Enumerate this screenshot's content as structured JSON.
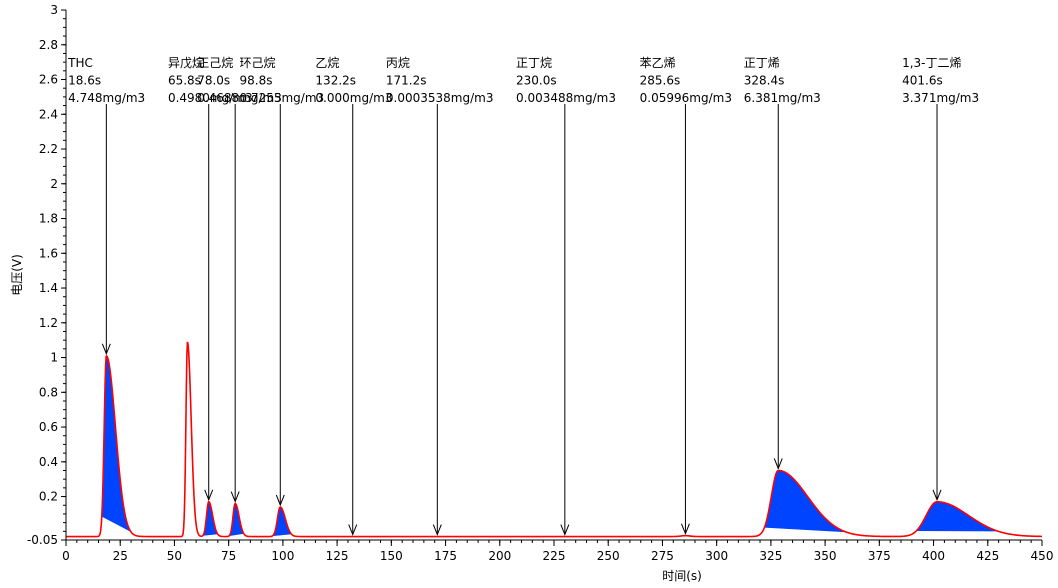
{
  "chart_data": {
    "type": "line",
    "title": "",
    "xlabel": "时间(s)",
    "ylabel": "电压(V)",
    "xlim": [
      0,
      450
    ],
    "ylim": [
      -0.05,
      3
    ],
    "baseline": -0.03,
    "x_ticks": [
      0,
      25,
      50,
      75,
      100,
      125,
      150,
      175,
      200,
      225,
      250,
      275,
      300,
      325,
      350,
      375,
      400,
      425,
      450
    ],
    "y_ticks": [
      "-0.05",
      "0.2",
      "0.4",
      "0.6",
      "0.8",
      "1",
      "1.2",
      "1.4",
      "1.6",
      "1.8",
      "2",
      "2.2",
      "2.4",
      "2.6",
      "2.8",
      "3"
    ],
    "line_color": "#ff0000",
    "fill_color": "#0044ff",
    "grid": false,
    "peaks": [
      {
        "name": "THC",
        "time": "18.6s",
        "conc": "4.748mg/m3",
        "t": 18.6,
        "height": 1.04,
        "sigma_l": 1.0,
        "sigma_r": 4.2,
        "start": 16.5,
        "end": 30,
        "label_x": 1.0
      },
      {
        "name": "异戊烷",
        "time": "65.8s",
        "conc": "0.4980mg/m3",
        "t": 65.8,
        "height": 0.2,
        "sigma_l": 1.0,
        "sigma_r": 1.8,
        "start": 63,
        "end": 70,
        "label_x": 47.0
      },
      {
        "name": "正己烷",
        "time": "78.0s",
        "conc": "0.4688mg/m3",
        "t": 78.0,
        "height": 0.19,
        "sigma_l": 1.0,
        "sigma_r": 1.8,
        "start": 75,
        "end": 82,
        "label_x": 60.5
      },
      {
        "name": "环己烷",
        "time": "98.8s",
        "conc": "0.7255mg/m3",
        "t": 98.8,
        "height": 0.17,
        "sigma_l": 1.3,
        "sigma_r": 2.3,
        "start": 95,
        "end": 104,
        "label_x": 80.0
      },
      {
        "name": "乙烷",
        "time": "132.2s",
        "conc": "0.000mg/m3",
        "t": 132.2,
        "height": 0.0,
        "sigma_l": 1.0,
        "sigma_r": 1.0,
        "start": 132,
        "end": 132,
        "label_x": 115.0
      },
      {
        "name": "丙烷",
        "time": "171.2s",
        "conc": "0.0003538mg/m3",
        "t": 171.2,
        "height": 0.0,
        "sigma_l": 1.0,
        "sigma_r": 1.0,
        "start": 171,
        "end": 171,
        "label_x": 147.5
      },
      {
        "name": "正丁烷",
        "time": "230.0s",
        "conc": "0.003488mg/m3",
        "t": 230.0,
        "height": 0.0,
        "sigma_l": 1.0,
        "sigma_r": 1.0,
        "start": 230,
        "end": 230,
        "label_x": 207.5
      },
      {
        "name": "苯乙烯",
        "time": "285.6s",
        "conc": "0.05996mg/m3",
        "t": 285.6,
        "height": 0.005,
        "sigma_l": 2.0,
        "sigma_r": 2.0,
        "start": 282,
        "end": 290,
        "label_x": 264.5
      },
      {
        "name": "正丁烯",
        "time": "328.4s",
        "conc": "6.381mg/m3",
        "t": 328.4,
        "height": 0.38,
        "sigma_l": 3.2,
        "sigma_r": 13.5,
        "start": 322,
        "end": 360,
        "label_x": 312.5
      },
      {
        "name": "1,3-丁二烯",
        "time": "401.6s",
        "conc": "3.371mg/m3",
        "t": 401.6,
        "height": 0.2,
        "sigma_l": 5.0,
        "sigma_r": 14.5,
        "start": 392,
        "end": 430,
        "label_x": 385.5
      }
    ],
    "unlabeled_peaks": [
      {
        "t": 56.0,
        "height": 1.12,
        "sigma_l": 0.7,
        "sigma_r": 1.7
      }
    ]
  }
}
